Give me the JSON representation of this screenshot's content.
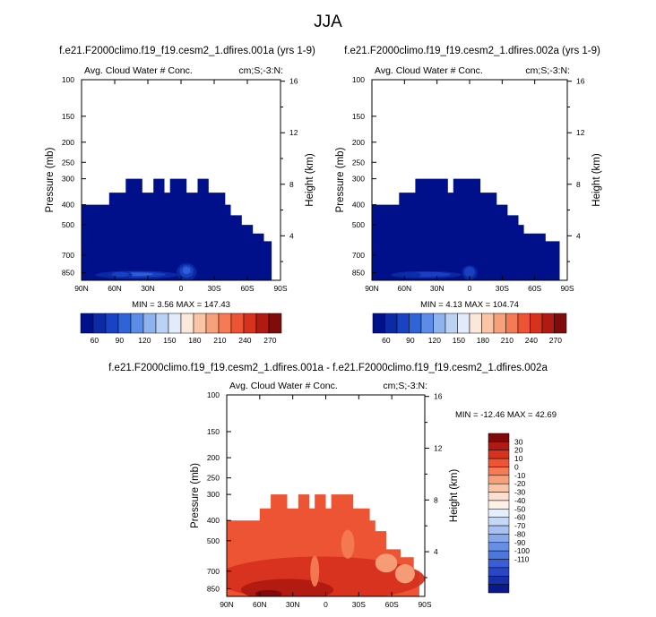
{
  "page_title": "JJA",
  "colors": {
    "abs_levels": [
      "#00108a",
      "#0b2aa6",
      "#1943c4",
      "#2f63d8",
      "#5b8ce8",
      "#8fb3ef",
      "#bcd2f5",
      "#e2ebfa",
      "#fbe8dc",
      "#f9c5a6",
      "#f7a17a",
      "#f47b54",
      "#ec5433",
      "#d6321d",
      "#b01a12",
      "#800b0b"
    ],
    "diff_levels": [
      "#80080b",
      "#b01a12",
      "#d6321d",
      "#ec5433",
      "#f47b54",
      "#f7a17a",
      "#f9c5a6",
      "#fbe0cf",
      "#fdf0e6",
      "#e6eefb",
      "#c6d8f7",
      "#a6c1f2",
      "#86a9ec",
      "#678fe6",
      "#4d77de",
      "#3a5fd4",
      "#2847c2",
      "#1730a8",
      "#0a1a8c"
    ]
  },
  "chart_data": [
    {
      "type": "heatmap",
      "id": "panel_a",
      "title": "f.e21.F2000climo.f19_f19.cesm2_1.dfires.001a (yrs 1-9)",
      "left_string": "Avg. Cloud Water # Conc.",
      "right_string": "cm;S;-3:N:",
      "xlabel": "",
      "ylabel": "Pressure (mb)",
      "y2label": "Height (km)",
      "x_ticks": [
        "90N",
        "60N",
        "30N",
        "0",
        "30S",
        "60S",
        "90S"
      ],
      "y_ticks": [
        100,
        150,
        200,
        250,
        300,
        400,
        500,
        700,
        850
      ],
      "y2_ticks": [
        16,
        12,
        8,
        4
      ],
      "xlim": [
        90,
        -90
      ],
      "ylim": [
        100,
        925
      ],
      "stats": "MIN =  3.56  MAX = 147.43",
      "colorbar_labels": [
        "60",
        "90",
        "120",
        "150",
        "180",
        "210",
        "240",
        "270"
      ],
      "top_profile": [
        [
          90,
          400
        ],
        [
          65,
          400
        ],
        [
          65,
          350
        ],
        [
          50,
          350
        ],
        [
          50,
          300
        ],
        [
          35,
          300
        ],
        [
          35,
          350
        ],
        [
          25,
          350
        ],
        [
          25,
          300
        ],
        [
          15,
          300
        ],
        [
          15,
          350
        ],
        [
          10,
          350
        ],
        [
          10,
          300
        ],
        [
          -5,
          300
        ],
        [
          -5,
          350
        ],
        [
          -15,
          350
        ],
        [
          -15,
          300
        ],
        [
          -25,
          300
        ],
        [
          -25,
          350
        ],
        [
          -40,
          350
        ],
        [
          -40,
          400
        ],
        [
          -45,
          400
        ],
        [
          -45,
          450
        ],
        [
          -55,
          450
        ],
        [
          -55,
          500
        ],
        [
          -65,
          500
        ],
        [
          -65,
          550
        ],
        [
          -75,
          550
        ],
        [
          -75,
          600
        ],
        [
          -82,
          600
        ],
        [
          -82,
          925
        ]
      ],
      "blobs": [
        [
          40,
          860,
          75,
          80,
          3
        ],
        [
          -5,
          820,
          18,
          170,
          3
        ],
        [
          55,
          860,
          22,
          70,
          2
        ]
      ]
    },
    {
      "type": "heatmap",
      "id": "panel_b",
      "title": "f.e21.F2000climo.f19_f19.cesm2_1.dfires.002a (yrs 1-9)",
      "left_string": "Avg. Cloud Water # Conc.",
      "right_string": "cm;S;-3:N:",
      "xlabel": "",
      "ylabel": "Pressure (mb)",
      "y2label": "Height (km)",
      "x_ticks": [
        "90N",
        "60N",
        "30N",
        "0",
        "30S",
        "60S",
        "90S"
      ],
      "y_ticks": [
        100,
        150,
        200,
        250,
        300,
        400,
        500,
        700,
        850
      ],
      "y2_ticks": [
        16,
        12,
        8,
        4
      ],
      "xlim": [
        90,
        -90
      ],
      "ylim": [
        100,
        925
      ],
      "stats": "MIN =  4.13  MAX = 104.74",
      "colorbar_labels": [
        "60",
        "90",
        "120",
        "150",
        "180",
        "210",
        "240",
        "270"
      ],
      "top_profile": [
        [
          90,
          400
        ],
        [
          65,
          400
        ],
        [
          65,
          350
        ],
        [
          50,
          350
        ],
        [
          50,
          300
        ],
        [
          20,
          300
        ],
        [
          20,
          350
        ],
        [
          15,
          350
        ],
        [
          15,
          300
        ],
        [
          -10,
          300
        ],
        [
          -10,
          350
        ],
        [
          -25,
          350
        ],
        [
          -25,
          400
        ],
        [
          -35,
          400
        ],
        [
          -35,
          450
        ],
        [
          -45,
          450
        ],
        [
          -45,
          500
        ],
        [
          -50,
          500
        ],
        [
          -50,
          550
        ],
        [
          -70,
          550
        ],
        [
          -70,
          600
        ],
        [
          -83,
          600
        ],
        [
          -83,
          925
        ]
      ],
      "blobs": [
        [
          40,
          860,
          65,
          70,
          2
        ],
        [
          0,
          830,
          14,
          140,
          2
        ],
        [
          55,
          860,
          20,
          60,
          1
        ]
      ]
    },
    {
      "type": "heatmap",
      "id": "panel_diff",
      "title": "f.e21.F2000climo.f19_f19.cesm2_1.dfires.001a - f.e21.F2000climo.f19_f19.cesm2_1.dfires.002a",
      "left_string": "Avg. Cloud Water # Conc.",
      "right_string": "cm;S;-3:N:",
      "xlabel": "",
      "ylabel": "Pressure (mb)",
      "y2label": "Height (km)",
      "x_ticks": [
        "90N",
        "60N",
        "30N",
        "0",
        "30S",
        "60S",
        "90S"
      ],
      "y_ticks": [
        100,
        150,
        200,
        250,
        300,
        400,
        500,
        700,
        850
      ],
      "y2_ticks": [
        16,
        12,
        8,
        4
      ],
      "xlim": [
        90,
        -90
      ],
      "ylim": [
        100,
        925
      ],
      "stats": "MIN = -12.46  MAX =  42.69",
      "colorbar_labels": [
        "30",
        "20",
        "10",
        "0",
        "-10",
        "-20",
        "-30",
        "-40",
        "-50",
        "-60",
        "-70",
        "-80",
        "-90",
        "-100",
        "-110"
      ],
      "top_profile": [
        [
          90,
          400
        ],
        [
          60,
          400
        ],
        [
          60,
          350
        ],
        [
          50,
          350
        ],
        [
          50,
          300
        ],
        [
          35,
          300
        ],
        [
          35,
          350
        ],
        [
          25,
          350
        ],
        [
          25,
          300
        ],
        [
          15,
          300
        ],
        [
          15,
          350
        ],
        [
          10,
          350
        ],
        [
          10,
          300
        ],
        [
          0,
          300
        ],
        [
          0,
          350
        ],
        [
          -5,
          350
        ],
        [
          -5,
          300
        ],
        [
          -25,
          300
        ],
        [
          -25,
          350
        ],
        [
          -40,
          350
        ],
        [
          -40,
          400
        ],
        [
          -45,
          400
        ],
        [
          -45,
          450
        ],
        [
          -55,
          450
        ],
        [
          -55,
          550
        ],
        [
          -68,
          550
        ],
        [
          -68,
          600
        ],
        [
          -80,
          600
        ],
        [
          -80,
          700
        ],
        [
          -85,
          700
        ],
        [
          -85,
          925
        ]
      ]
    }
  ]
}
